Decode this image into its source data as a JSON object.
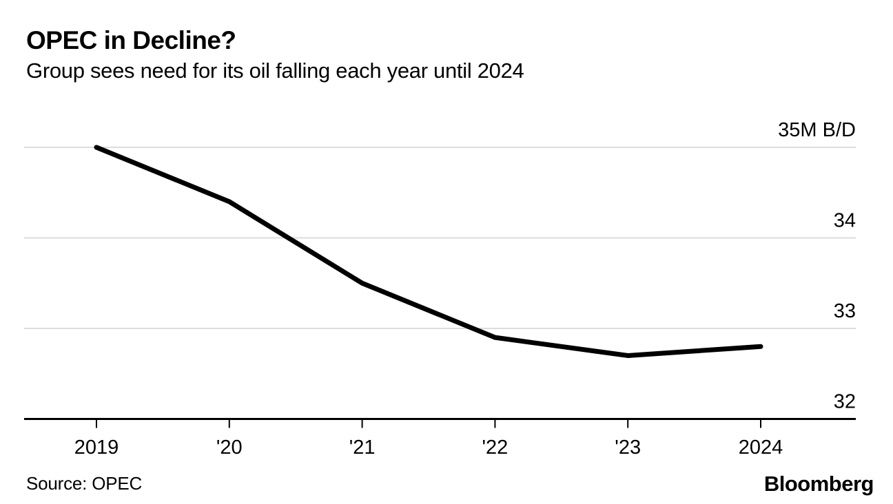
{
  "footer": {
    "source": "Source: OPEC",
    "brand": "Bloomberg"
  },
  "chart_data": {
    "type": "line",
    "title": "OPEC in Decline?",
    "subtitle": "Group sees need for its oil falling each year until 2024",
    "categories": [
      "2019",
      "'20",
      "'21",
      "'22",
      "'23",
      "2024"
    ],
    "values": [
      35.0,
      34.4,
      33.5,
      32.9,
      32.7,
      32.8
    ],
    "y_gridlines": [
      {
        "value": 35,
        "label": "35M B/D"
      },
      {
        "value": 34,
        "label": "34"
      },
      {
        "value": 33,
        "label": "33"
      },
      {
        "value": 32,
        "label": "32"
      }
    ],
    "ylim": [
      32,
      35
    ],
    "xlabel": "",
    "ylabel": "M B/D",
    "grid": "horizontal",
    "legend": "none",
    "line_color": "#000000",
    "axis_color": "#000000",
    "gridline_color": "#dcdcdc",
    "text_color": "#000000",
    "background_color": "#ffffff"
  }
}
